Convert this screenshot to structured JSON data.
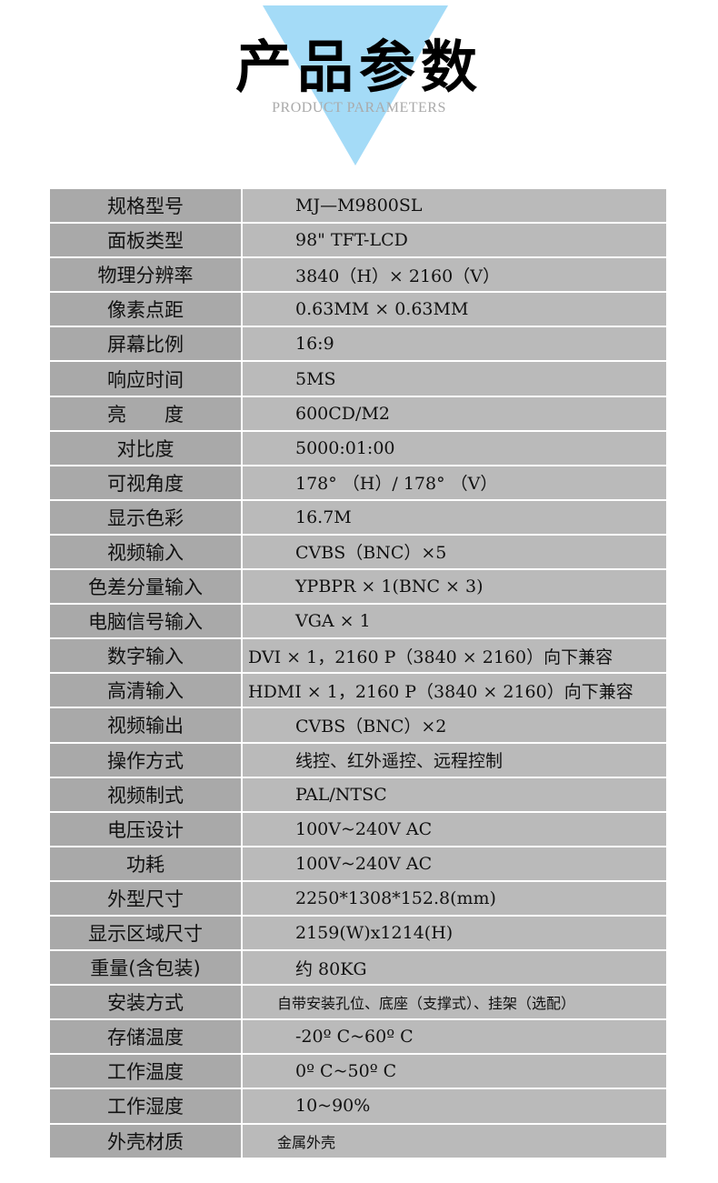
{
  "header": {
    "title": "产品参数",
    "subtitle": "PRODUCT PARAMETERS",
    "accent": "#a4dbf7"
  },
  "specs": [
    {
      "label": "规格型号",
      "value": "MJ—M9800SL"
    },
    {
      "label": "面板类型",
      "value": "98\" TFT-LCD"
    },
    {
      "label": "物理分辨率",
      "value": "3840（H）× 2160（V）"
    },
    {
      "label": "像素点距",
      "value": "0.63MM × 0.63MM"
    },
    {
      "label": "屏幕比例",
      "value": "16:9"
    },
    {
      "label": "响应时间",
      "value": "5MS"
    },
    {
      "label": "亮　　度",
      "value": "600CD/M2"
    },
    {
      "label": "对比度",
      "value": "5000:01:00"
    },
    {
      "label": "可视角度",
      "value": "178° （H）/ 178° （V）"
    },
    {
      "label": "显示色彩",
      "value": "16.7M"
    },
    {
      "label": "视频输入",
      "value": "CVBS（BNC）×5"
    },
    {
      "label": "色差分量输入",
      "value": "YPBPR × 1(BNC × 3)"
    },
    {
      "label": "电脑信号输入",
      "value": "VGA × 1"
    },
    {
      "label": "数字输入",
      "value": "DVI × 1，2160 P（3840 × 2160）向下兼容"
    },
    {
      "label": "高清输入",
      "value": "HDMI × 1，2160 P（3840 × 2160）向下兼容"
    },
    {
      "label": "视频输出",
      "value": "CVBS（BNC）×2"
    },
    {
      "label": "操作方式",
      "value": "线控、红外遥控、远程控制"
    },
    {
      "label": "视频制式",
      "value": "PAL/NTSC"
    },
    {
      "label": "电压设计",
      "value": "100V~240V AC"
    },
    {
      "label": "功耗",
      "value": "100V~240V AC"
    },
    {
      "label": "外型尺寸",
      "value": "2250*1308*152.8(mm)"
    },
    {
      "label": "显示区域尺寸",
      "value": "2159(W)x1214(H)"
    },
    {
      "label": "重量(含包装)",
      "value": "约 80KG"
    },
    {
      "label": "安装方式",
      "value": "自带安装孔位、底座（支撑式）、挂架（选配）"
    },
    {
      "label": "存储温度",
      "value": "-20º C~60º C"
    },
    {
      "label": "工作温度",
      "value": "0º C~50º C"
    },
    {
      "label": "工作湿度",
      "value": "10~90%"
    },
    {
      "label": "外壳材质",
      "value": "金属外壳"
    }
  ]
}
